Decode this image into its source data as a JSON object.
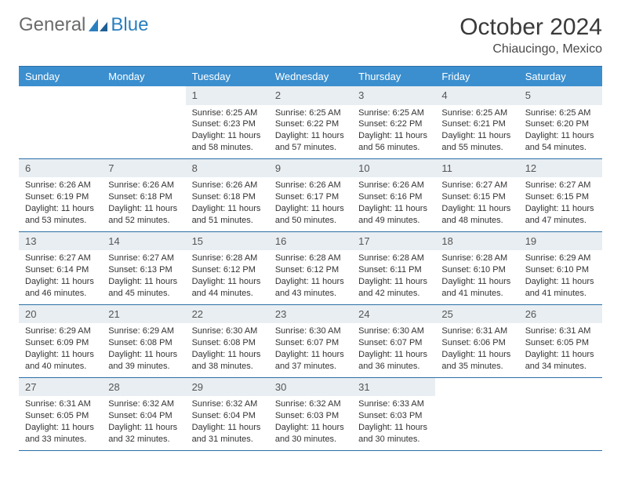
{
  "brand": {
    "part1": "General",
    "part2": "Blue"
  },
  "title": "October 2024",
  "location": "Chiaucingo, Mexico",
  "colors": {
    "header_bg": "#3b8fcf",
    "border": "#2a6fa8",
    "daynum_bg": "#e9eef2",
    "text": "#333333",
    "brand_gray": "#6b6b6b",
    "brand_blue": "#2a7fbf"
  },
  "day_names": [
    "Sunday",
    "Monday",
    "Tuesday",
    "Wednesday",
    "Thursday",
    "Friday",
    "Saturday"
  ],
  "weeks": [
    [
      {
        "n": "",
        "sr": "",
        "ss": "",
        "dl": ""
      },
      {
        "n": "",
        "sr": "",
        "ss": "",
        "dl": ""
      },
      {
        "n": "1",
        "sr": "Sunrise: 6:25 AM",
        "ss": "Sunset: 6:23 PM",
        "dl": "Daylight: 11 hours and 58 minutes."
      },
      {
        "n": "2",
        "sr": "Sunrise: 6:25 AM",
        "ss": "Sunset: 6:22 PM",
        "dl": "Daylight: 11 hours and 57 minutes."
      },
      {
        "n": "3",
        "sr": "Sunrise: 6:25 AM",
        "ss": "Sunset: 6:22 PM",
        "dl": "Daylight: 11 hours and 56 minutes."
      },
      {
        "n": "4",
        "sr": "Sunrise: 6:25 AM",
        "ss": "Sunset: 6:21 PM",
        "dl": "Daylight: 11 hours and 55 minutes."
      },
      {
        "n": "5",
        "sr": "Sunrise: 6:25 AM",
        "ss": "Sunset: 6:20 PM",
        "dl": "Daylight: 11 hours and 54 minutes."
      }
    ],
    [
      {
        "n": "6",
        "sr": "Sunrise: 6:26 AM",
        "ss": "Sunset: 6:19 PM",
        "dl": "Daylight: 11 hours and 53 minutes."
      },
      {
        "n": "7",
        "sr": "Sunrise: 6:26 AM",
        "ss": "Sunset: 6:18 PM",
        "dl": "Daylight: 11 hours and 52 minutes."
      },
      {
        "n": "8",
        "sr": "Sunrise: 6:26 AM",
        "ss": "Sunset: 6:18 PM",
        "dl": "Daylight: 11 hours and 51 minutes."
      },
      {
        "n": "9",
        "sr": "Sunrise: 6:26 AM",
        "ss": "Sunset: 6:17 PM",
        "dl": "Daylight: 11 hours and 50 minutes."
      },
      {
        "n": "10",
        "sr": "Sunrise: 6:26 AM",
        "ss": "Sunset: 6:16 PM",
        "dl": "Daylight: 11 hours and 49 minutes."
      },
      {
        "n": "11",
        "sr": "Sunrise: 6:27 AM",
        "ss": "Sunset: 6:15 PM",
        "dl": "Daylight: 11 hours and 48 minutes."
      },
      {
        "n": "12",
        "sr": "Sunrise: 6:27 AM",
        "ss": "Sunset: 6:15 PM",
        "dl": "Daylight: 11 hours and 47 minutes."
      }
    ],
    [
      {
        "n": "13",
        "sr": "Sunrise: 6:27 AM",
        "ss": "Sunset: 6:14 PM",
        "dl": "Daylight: 11 hours and 46 minutes."
      },
      {
        "n": "14",
        "sr": "Sunrise: 6:27 AM",
        "ss": "Sunset: 6:13 PM",
        "dl": "Daylight: 11 hours and 45 minutes."
      },
      {
        "n": "15",
        "sr": "Sunrise: 6:28 AM",
        "ss": "Sunset: 6:12 PM",
        "dl": "Daylight: 11 hours and 44 minutes."
      },
      {
        "n": "16",
        "sr": "Sunrise: 6:28 AM",
        "ss": "Sunset: 6:12 PM",
        "dl": "Daylight: 11 hours and 43 minutes."
      },
      {
        "n": "17",
        "sr": "Sunrise: 6:28 AM",
        "ss": "Sunset: 6:11 PM",
        "dl": "Daylight: 11 hours and 42 minutes."
      },
      {
        "n": "18",
        "sr": "Sunrise: 6:28 AM",
        "ss": "Sunset: 6:10 PM",
        "dl": "Daylight: 11 hours and 41 minutes."
      },
      {
        "n": "19",
        "sr": "Sunrise: 6:29 AM",
        "ss": "Sunset: 6:10 PM",
        "dl": "Daylight: 11 hours and 41 minutes."
      }
    ],
    [
      {
        "n": "20",
        "sr": "Sunrise: 6:29 AM",
        "ss": "Sunset: 6:09 PM",
        "dl": "Daylight: 11 hours and 40 minutes."
      },
      {
        "n": "21",
        "sr": "Sunrise: 6:29 AM",
        "ss": "Sunset: 6:08 PM",
        "dl": "Daylight: 11 hours and 39 minutes."
      },
      {
        "n": "22",
        "sr": "Sunrise: 6:30 AM",
        "ss": "Sunset: 6:08 PM",
        "dl": "Daylight: 11 hours and 38 minutes."
      },
      {
        "n": "23",
        "sr": "Sunrise: 6:30 AM",
        "ss": "Sunset: 6:07 PM",
        "dl": "Daylight: 11 hours and 37 minutes."
      },
      {
        "n": "24",
        "sr": "Sunrise: 6:30 AM",
        "ss": "Sunset: 6:07 PM",
        "dl": "Daylight: 11 hours and 36 minutes."
      },
      {
        "n": "25",
        "sr": "Sunrise: 6:31 AM",
        "ss": "Sunset: 6:06 PM",
        "dl": "Daylight: 11 hours and 35 minutes."
      },
      {
        "n": "26",
        "sr": "Sunrise: 6:31 AM",
        "ss": "Sunset: 6:05 PM",
        "dl": "Daylight: 11 hours and 34 minutes."
      }
    ],
    [
      {
        "n": "27",
        "sr": "Sunrise: 6:31 AM",
        "ss": "Sunset: 6:05 PM",
        "dl": "Daylight: 11 hours and 33 minutes."
      },
      {
        "n": "28",
        "sr": "Sunrise: 6:32 AM",
        "ss": "Sunset: 6:04 PM",
        "dl": "Daylight: 11 hours and 32 minutes."
      },
      {
        "n": "29",
        "sr": "Sunrise: 6:32 AM",
        "ss": "Sunset: 6:04 PM",
        "dl": "Daylight: 11 hours and 31 minutes."
      },
      {
        "n": "30",
        "sr": "Sunrise: 6:32 AM",
        "ss": "Sunset: 6:03 PM",
        "dl": "Daylight: 11 hours and 30 minutes."
      },
      {
        "n": "31",
        "sr": "Sunrise: 6:33 AM",
        "ss": "Sunset: 6:03 PM",
        "dl": "Daylight: 11 hours and 30 minutes."
      },
      {
        "n": "",
        "sr": "",
        "ss": "",
        "dl": ""
      },
      {
        "n": "",
        "sr": "",
        "ss": "",
        "dl": ""
      }
    ]
  ]
}
